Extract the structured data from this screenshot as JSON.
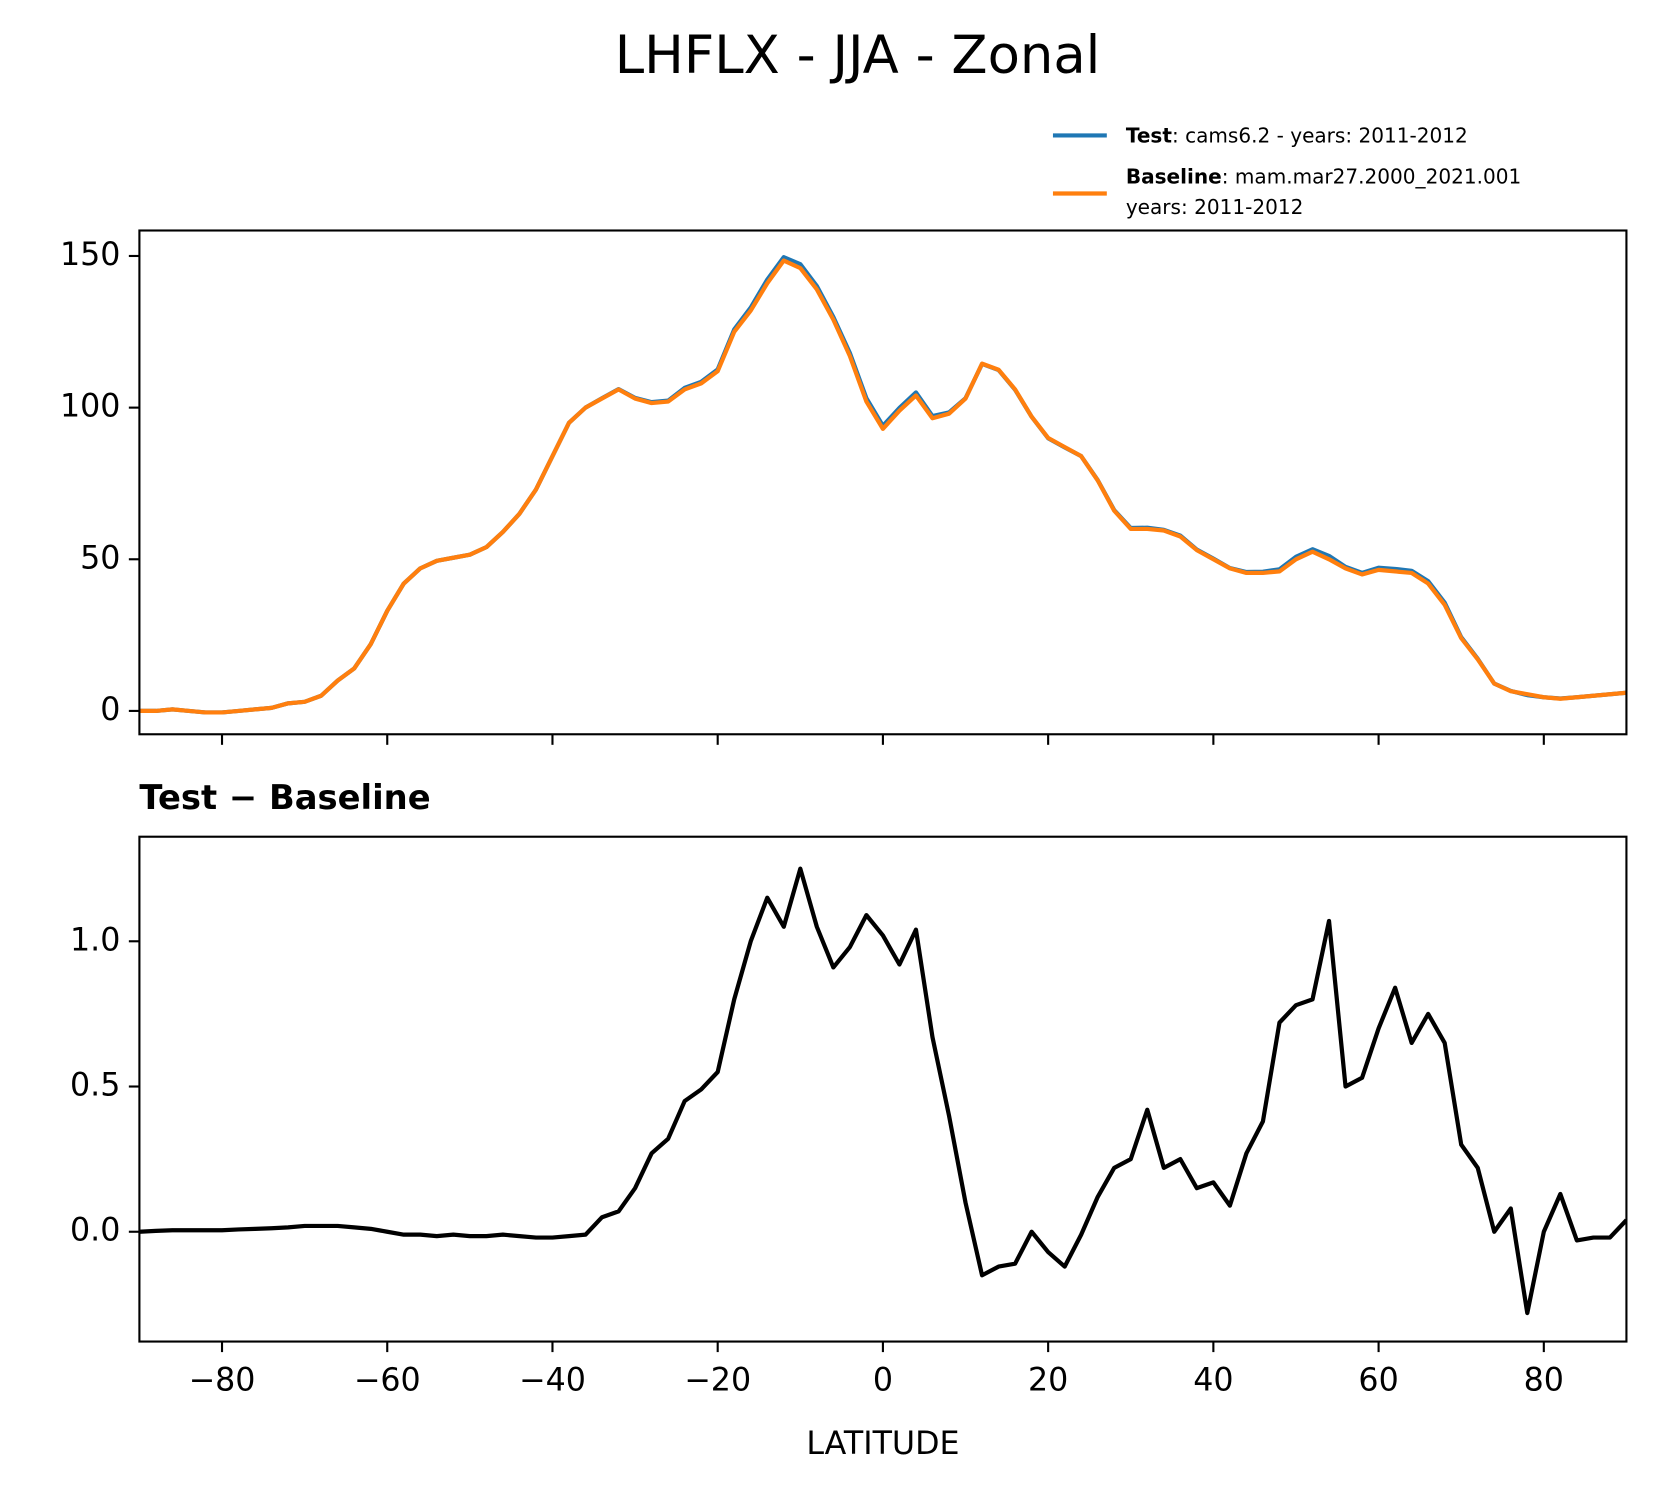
{
  "title": "LHFLX - JJA - Zonal",
  "chart_data": [
    {
      "type": "line",
      "x": [
        -90,
        -88,
        -86,
        -84,
        -82,
        -80,
        -78,
        -76,
        -74,
        -72,
        -70,
        -68,
        -66,
        -64,
        -62,
        -60,
        -58,
        -56,
        -54,
        -52,
        -50,
        -48,
        -46,
        -44,
        -42,
        -40,
        -38,
        -36,
        -34,
        -32,
        -30,
        -28,
        -26,
        -24,
        -22,
        -20,
        -18,
        -16,
        -14,
        -12,
        -10,
        -8,
        -6,
        -4,
        -2,
        0,
        2,
        4,
        6,
        8,
        10,
        12,
        14,
        16,
        18,
        20,
        22,
        24,
        26,
        28,
        30,
        32,
        34,
        36,
        38,
        40,
        42,
        44,
        46,
        48,
        50,
        52,
        54,
        56,
        58,
        60,
        62,
        64,
        66,
        68,
        70,
        72,
        74,
        76,
        78,
        80,
        82,
        84,
        86,
        88,
        90
      ],
      "series": [
        {
          "name": "Test",
          "label": ": cams6.2 - years: 2011-2012",
          "color": "#1f77b4",
          "values": [
            0,
            0,
            0.5,
            0,
            -0.5,
            -0.5,
            0,
            0.5,
            1,
            2.5,
            3,
            5,
            10,
            14,
            22,
            33,
            42,
            47,
            49.5,
            50.5,
            51.5,
            54,
            59,
            65,
            73,
            84,
            95,
            100,
            103.1,
            106.1,
            103.2,
            101.8,
            102.3,
            106.5,
            108.5,
            112.6,
            125.8,
            133,
            142.2,
            149.6,
            147.3,
            140.1,
            129.9,
            118,
            103.1,
            94,
            99.9,
            105,
            97.2,
            98.4,
            103.1,
            114.4,
            112.4,
            105.9,
            97,
            89.9,
            86.9,
            84,
            76.1,
            66.2,
            60.3,
            60.4,
            59.7,
            57.8,
            53.2,
            50.2,
            47.1,
            45.8,
            45.9,
            46.7,
            50.8,
            53.3,
            51.1,
            47.5,
            45.5,
            47.2,
            46.8,
            46.2,
            42.8,
            35.7,
            24.3,
            17.2,
            9,
            6.6,
            5.2,
            4.5,
            4.1,
            4.5,
            5,
            5.5,
            6
          ]
        },
        {
          "name": "Baseline",
          "label": [
            ": mam.mar27.2000_2021.001",
            "years: 2011-2012"
          ],
          "color": "#ff7f0e",
          "values": [
            0,
            0,
            0.5,
            0,
            -0.5,
            -0.5,
            0,
            0.5,
            1,
            2.5,
            3,
            5,
            10,
            14,
            22,
            33,
            42,
            47,
            49.5,
            50.5,
            51.5,
            54,
            59,
            65,
            73,
            84,
            95,
            100,
            103,
            106,
            103,
            101.5,
            102,
            106,
            108,
            112,
            125,
            132,
            141,
            148.5,
            146,
            139,
            129,
            117,
            102,
            93,
            99,
            104,
            96.5,
            98,
            103,
            114.5,
            112.5,
            106,
            97,
            90,
            87,
            84,
            76,
            66,
            60,
            60,
            59.5,
            57.5,
            53,
            50,
            47,
            45.5,
            45.5,
            46,
            50,
            52.5,
            50,
            47,
            45,
            46.5,
            46,
            45.5,
            42,
            35,
            24,
            17,
            9,
            6.5,
            5.5,
            4.5,
            4,
            4.5,
            5,
            5.5,
            6
          ]
        }
      ],
      "xlim": [
        -90,
        90
      ],
      "xticks": [
        -80,
        -60,
        -40,
        -20,
        0,
        20,
        40,
        60,
        80
      ],
      "ylim": [
        -7.7,
        158.4
      ],
      "yticks": [
        0,
        50,
        100,
        150
      ]
    },
    {
      "type": "line",
      "title": "Test − Baseline",
      "xlabel": "LATITUDE",
      "x": [
        -90,
        -88,
        -86,
        -84,
        -82,
        -80,
        -78,
        -76,
        -74,
        -72,
        -70,
        -68,
        -66,
        -64,
        -62,
        -60,
        -58,
        -56,
        -54,
        -52,
        -50,
        -48,
        -46,
        -44,
        -42,
        -40,
        -38,
        -36,
        -34,
        -32,
        -30,
        -28,
        -26,
        -24,
        -22,
        -20,
        -18,
        -16,
        -14,
        -12,
        -10,
        -8,
        -6,
        -4,
        -2,
        0,
        2,
        4,
        6,
        8,
        10,
        12,
        14,
        16,
        18,
        20,
        22,
        24,
        26,
        28,
        30,
        32,
        34,
        36,
        38,
        40,
        42,
        44,
        46,
        48,
        50,
        52,
        54,
        56,
        58,
        60,
        62,
        64,
        66,
        68,
        70,
        72,
        74,
        76,
        78,
        80,
        82,
        84,
        86,
        88,
        90
      ],
      "series": [
        {
          "color": "#000000",
          "values": [
            0,
            0.003,
            0.005,
            0.005,
            0.005,
            0.005,
            0.008,
            0.01,
            0.012,
            0.015,
            0.02,
            0.02,
            0.02,
            0.015,
            0.01,
            0,
            -0.01,
            -0.01,
            -0.015,
            -0.01,
            -0.015,
            -0.015,
            -0.01,
            -0.015,
            -0.02,
            -0.02,
            -0.015,
            -0.01,
            0.05,
            0.07,
            0.15,
            0.27,
            0.32,
            0.45,
            0.49,
            0.55,
            0.8,
            1.0,
            1.15,
            1.05,
            1.25,
            1.05,
            0.91,
            0.98,
            1.09,
            1.02,
            0.92,
            1.04,
            0.67,
            0.4,
            0.1,
            -0.15,
            -0.12,
            -0.11,
            0,
            -0.07,
            -0.12,
            -0.01,
            0.12,
            0.22,
            0.25,
            0.42,
            0.22,
            0.25,
            0.15,
            0.17,
            0.09,
            0.27,
            0.38,
            0.72,
            0.78,
            0.8,
            1.07,
            0.5,
            0.53,
            0.7,
            0.84,
            0.65,
            0.75,
            0.65,
            0.3,
            0.22,
            0,
            0.08,
            -0.28,
            0,
            0.13,
            -0.03,
            -0.02,
            -0.02,
            0.04
          ]
        }
      ],
      "xlim": [
        -90,
        90
      ],
      "xticks": [
        {
          "value": -80,
          "label": "−80"
        },
        {
          "value": -60,
          "label": "−60"
        },
        {
          "value": -40,
          "label": "−40"
        },
        {
          "value": -20,
          "label": "−20"
        },
        0,
        20,
        40,
        60,
        80
      ],
      "ylim": [
        -0.378,
        1.36
      ],
      "yticks": [
        {
          "value": 0,
          "label": "0.0"
        },
        0.5,
        {
          "value": 1,
          "label": "1.0"
        }
      ]
    }
  ]
}
